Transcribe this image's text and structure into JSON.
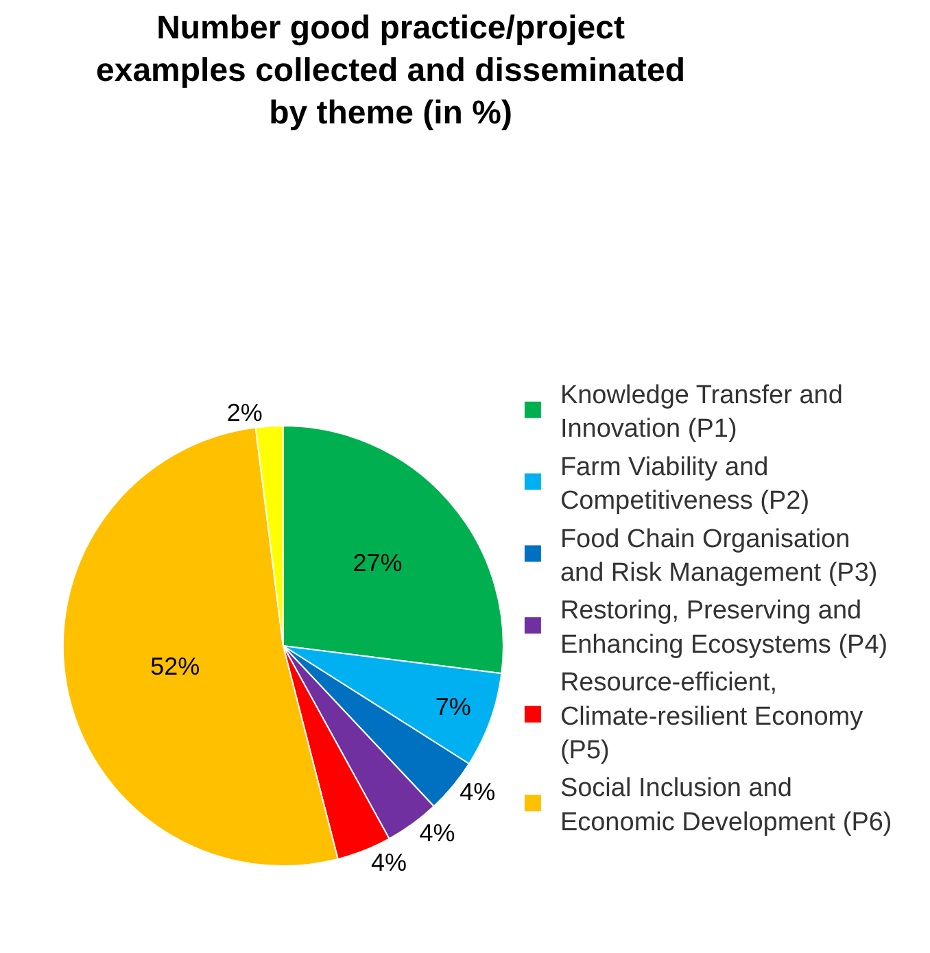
{
  "chart_data": {
    "type": "pie",
    "title": "Number good practice/project examples collected and disseminated by theme (in %)",
    "categories": [
      "Knowledge Transfer and Innovation (P1)",
      "Farm Viability and Competitiveness (P2)",
      "Food Chain Organisation and Risk Management (P3)",
      "Restoring, Preserving and Enhancing Ecosystems (P4)",
      "Resource-efficient, Climate-resilient Economy (P5)",
      "Social Inclusion and Economic Development (P6)",
      null
    ],
    "values": [
      27,
      7,
      4,
      4,
      4,
      52,
      2
    ],
    "value_labels": [
      "27%",
      "7%",
      "4%",
      "4%",
      "4%",
      "52%",
      "2%"
    ],
    "colors": [
      "#00b050",
      "#00b0f0",
      "#0070c0",
      "#7030a0",
      "#ff0000",
      "#ffc000",
      "#ffff00"
    ],
    "legend": "right"
  }
}
